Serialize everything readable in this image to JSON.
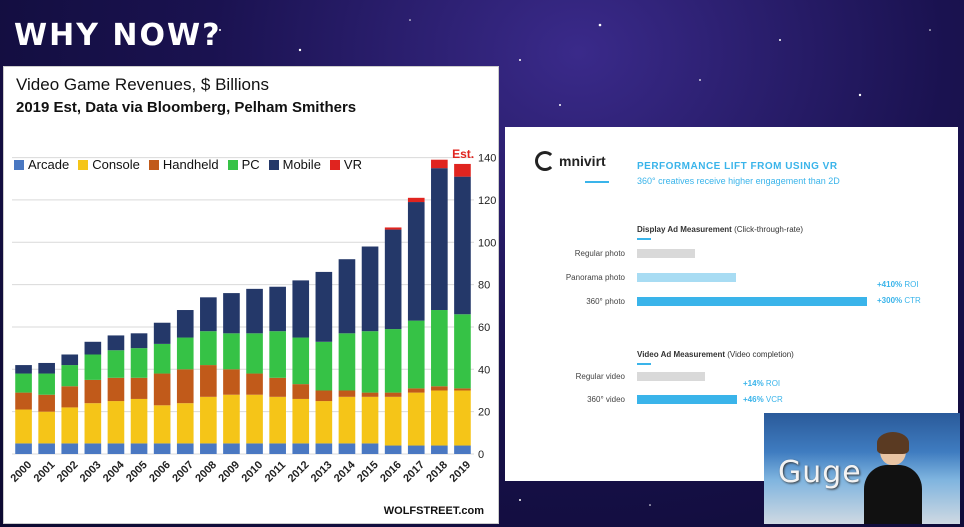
{
  "slide": {
    "headline": "WHY NOW?"
  },
  "left_chart": {
    "title": "Video Game Revenues, $ Billions",
    "subtitle": "2019 Est, Data via Bloomberg, Pelham Smithers",
    "source": "WOLFSTREET.com",
    "est_label": "Est.",
    "legend": [
      {
        "name": "Arcade",
        "color": "#4a78c2"
      },
      {
        "name": "Console",
        "color": "#f5c518"
      },
      {
        "name": "Handheld",
        "color": "#c15a1a"
      },
      {
        "name": "PC",
        "color": "#36c246"
      },
      {
        "name": "Mobile",
        "color": "#243869"
      },
      {
        "name": "VR",
        "color": "#e0241f"
      }
    ]
  },
  "chart_data": [
    {
      "type": "bar",
      "stacked": true,
      "title": "Video Game Revenues, $ Billions",
      "subtitle": "2019 Est, Data via Bloomberg, Pelham Smithers",
      "categories": [
        "2000",
        "2001",
        "2002",
        "2003",
        "2004",
        "2005",
        "2006",
        "2007",
        "2008",
        "2009",
        "2010",
        "2011",
        "2012",
        "2013",
        "2014",
        "2015",
        "2016",
        "2017",
        "2018",
        "2019"
      ],
      "yticks": [
        0,
        20,
        40,
        60,
        80,
        100,
        120,
        140
      ],
      "ylim": [
        0,
        145
      ],
      "y_axis_side": "right",
      "legend_position": "top",
      "grid": true,
      "annotation": {
        "text": "Est.",
        "category": "2019"
      },
      "series": [
        {
          "name": "Arcade",
          "color": "#4a78c2",
          "values": [
            5,
            5,
            5,
            5,
            5,
            5,
            5,
            5,
            5,
            5,
            5,
            5,
            5,
            5,
            5,
            5,
            4,
            4,
            4,
            4
          ]
        },
        {
          "name": "Console",
          "color": "#f5c518",
          "values": [
            16,
            15,
            17,
            19,
            20,
            21,
            18,
            19,
            22,
            23,
            23,
            22,
            21,
            20,
            22,
            22,
            23,
            25,
            26,
            26
          ]
        },
        {
          "name": "Handheld",
          "color": "#c15a1a",
          "values": [
            8,
            8,
            10,
            11,
            11,
            10,
            15,
            16,
            15,
            12,
            10,
            9,
            7,
            5,
            3,
            2,
            2,
            2,
            2,
            1
          ]
        },
        {
          "name": "PC",
          "color": "#36c246",
          "values": [
            9,
            10,
            10,
            12,
            13,
            14,
            14,
            15,
            16,
            17,
            19,
            22,
            22,
            23,
            27,
            29,
            30,
            32,
            36,
            35
          ]
        },
        {
          "name": "Mobile",
          "color": "#243869",
          "values": [
            4,
            5,
            5,
            6,
            7,
            7,
            10,
            13,
            16,
            19,
            21,
            21,
            27,
            33,
            35,
            40,
            47,
            56,
            67,
            65
          ]
        },
        {
          "name": "VR",
          "color": "#e0241f",
          "values": [
            0,
            0,
            0,
            0,
            0,
            0,
            0,
            0,
            0,
            0,
            0,
            0,
            0,
            0,
            0,
            0,
            1,
            2,
            4,
            6
          ]
        }
      ]
    },
    {
      "type": "bar",
      "orientation": "horizontal",
      "title": "PERFORMANCE LIFT FROM USING VR",
      "subtitle": "360° creatives receive higher engagement than 2D",
      "groups": [
        {
          "title": "Display Ad Measurement",
          "note": "(Click-through-rate)",
          "categories": [
            "Regular photo",
            "Panorama photo",
            "360° photo"
          ],
          "relative_values": [
            1.0,
            1.7,
            4.1
          ],
          "colors": [
            "#d9d9d9",
            "#a8dcf3",
            "#3ab4ea"
          ],
          "metrics": [
            {
              "value": "+410%",
              "label": "ROI"
            },
            {
              "value": "+300%",
              "label": "CTR"
            }
          ]
        },
        {
          "title": "Video Ad Measurement",
          "note": "(Video completion)",
          "categories": [
            "Regular video",
            "360° video"
          ],
          "relative_values": [
            1.0,
            1.46
          ],
          "colors": [
            "#d9d9d9",
            "#3ab4ea"
          ],
          "metrics": [
            {
              "value": "+14%",
              "label": "ROI"
            },
            {
              "value": "+46%",
              "label": "VCR"
            }
          ]
        }
      ]
    }
  ],
  "right_panel": {
    "logo": "mnivirt",
    "title": "PERFORMANCE LIFT FROM USING VR",
    "subtitle": "360° creatives receive higher engagement than 2D",
    "display": {
      "title": "Display Ad Measurement",
      "note": "(Click-through-rate)",
      "rows": [
        "Regular photo",
        "Panorama photo",
        "360° photo"
      ],
      "metric1_value": "+410%",
      "metric1_label": "ROI",
      "metric2_value": "+300%",
      "metric2_label": "CTR"
    },
    "video": {
      "title": "Video Ad Measurement",
      "note": "(Video completion)",
      "rows": [
        "Regular video",
        "360° video"
      ],
      "metric1_value": "+14%",
      "metric1_label": "ROI",
      "metric2_value": "+46%",
      "metric2_label": "VCR"
    }
  },
  "webcam": {
    "text": "Guge"
  }
}
